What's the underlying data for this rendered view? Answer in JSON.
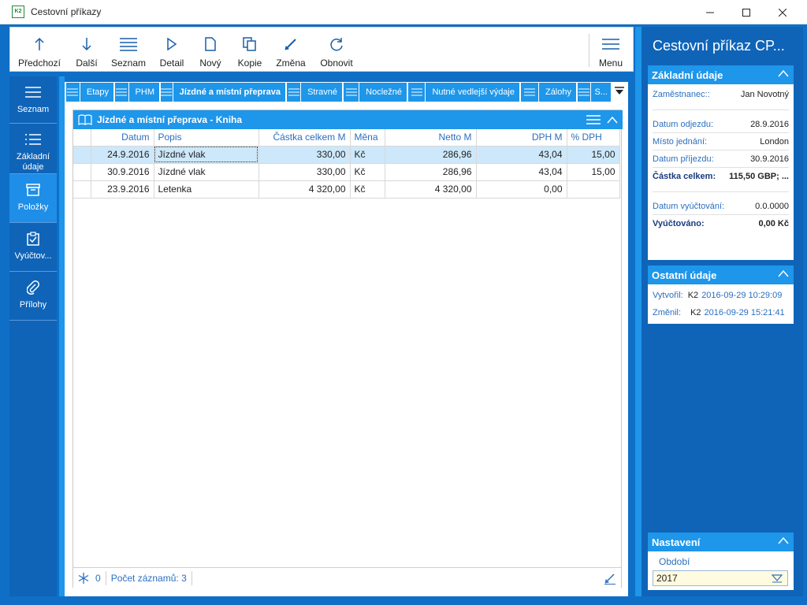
{
  "window": {
    "app_icon_text": "K2",
    "title": "Cestovní příkazy"
  },
  "toolbar": {
    "prev": "Předchozí",
    "next": "Další",
    "list": "Seznam",
    "detail": "Detail",
    "new": "Nový",
    "copy": "Kopie",
    "edit": "Změna",
    "refresh": "Obnovit",
    "menu": "Menu"
  },
  "nav": {
    "items": [
      {
        "label": "Seznam",
        "icon": "list-icon"
      },
      {
        "label": "Základní údaje",
        "icon": "list-detail-icon"
      },
      {
        "label": "Položky",
        "icon": "box-icon"
      },
      {
        "label": "Vyúčtov...",
        "icon": "clipboard-check-icon"
      },
      {
        "label": "Přílohy",
        "icon": "paperclip-icon"
      }
    ]
  },
  "tabs": [
    {
      "label": "Etapy"
    },
    {
      "label": "PHM"
    },
    {
      "label": "Jízdné a místní přeprava"
    },
    {
      "label": "Stravné"
    },
    {
      "label": "Nocležné"
    },
    {
      "label": "Nutné vedlejší výdaje"
    },
    {
      "label": "Zálohy"
    },
    {
      "label": "S..."
    }
  ],
  "grid": {
    "title": "Jízdné a místní přeprava - Kniha",
    "columns": [
      "Datum",
      "Popis",
      "Částka celkem M",
      "Měna",
      "Netto M",
      "DPH M",
      "% DPH"
    ],
    "rows": [
      {
        "datum": "24.9.2016",
        "popis": "Jízdné vlak",
        "castka": "330,00",
        "mena": "Kč",
        "netto": "286,96",
        "dph": "43,04",
        "pct": "15,00"
      },
      {
        "datum": "30.9.2016",
        "popis": "Jízdné vlak",
        "castka": "330,00",
        "mena": "Kč",
        "netto": "286,96",
        "dph": "43,04",
        "pct": "15,00"
      },
      {
        "datum": "23.9.2016",
        "popis": "Letenka",
        "castka": "4 320,00",
        "mena": "Kč",
        "netto": "4 320,00",
        "dph": "0,00",
        "pct": ""
      }
    ],
    "footer": {
      "selected_count": "0",
      "record_count": "Počet záznamů: 3"
    }
  },
  "right": {
    "title": "Cestovní příkaz CP...",
    "basic": {
      "heading": "Základní údaje",
      "employee_label": "Zaměstnanec::",
      "employee_value": "Jan Novotný",
      "departure_label": "Datum odjezdu:",
      "departure_value": "28.9.2016",
      "place_label": "Místo jednání:",
      "place_value": "London",
      "arrival_label": "Datum příjezdu:",
      "arrival_value": "30.9.2016",
      "total_label": "Částka celkem:",
      "total_value": "115,50 GBP; ...",
      "settle_date_label": "Datum vyúčtování:",
      "settle_date_value": "0.0.0000",
      "settled_label": "Vyúčtováno:",
      "settled_value": "0,00 Kč"
    },
    "other": {
      "heading": "Ostatní údaje",
      "created_label": "Vytvořil:",
      "created_user": "K2",
      "created_time": "2016-09-29 10:29:09",
      "changed_label": "Změnil:",
      "changed_user": "K2",
      "changed_time": "2016-09-29 15:21:41"
    },
    "settings": {
      "heading": "Nastavení",
      "period_label": "Období",
      "period_value": "2017"
    }
  },
  "colors": {
    "accent": "#1e96ea",
    "dark": "#0f64b8",
    "selected_row": "#cde8fa"
  }
}
